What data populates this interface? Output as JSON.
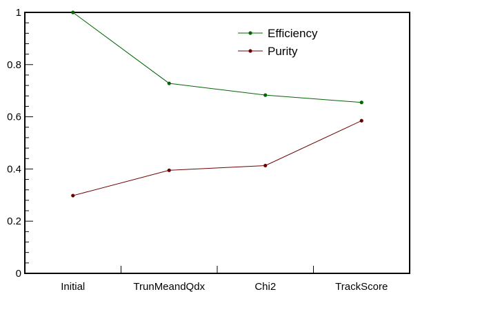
{
  "chart_data": {
    "type": "line",
    "categories": [
      "Initial",
      "TrunMeandQdx",
      "Chi2",
      "TrackScore"
    ],
    "series": [
      {
        "name": "Efficiency",
        "values": [
          1.0,
          0.728,
          0.683,
          0.655
        ],
        "color": "#006400"
      },
      {
        "name": "Purity",
        "values": [
          0.298,
          0.395,
          0.413,
          0.585
        ],
        "color": "#6b0000"
      }
    ],
    "ylim": [
      0,
      1
    ],
    "yticks": [
      "0",
      "0.2",
      "0.4",
      "0.6",
      "0.8",
      "1"
    ],
    "grid": false,
    "legend_position": "top-right",
    "title": "",
    "xlabel": "",
    "ylabel": ""
  }
}
